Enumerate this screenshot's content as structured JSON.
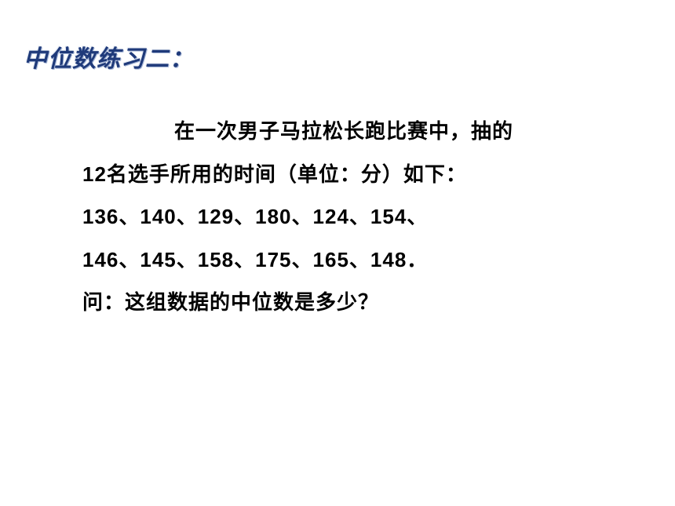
{
  "title": "中位数练习二：",
  "line1": "在一次男子马拉松长跑比赛中，抽的",
  "line2": "12名选手所用的时间（单位：分）如下：",
  "line3": "136、140、129、180、124、154、",
  "line4": "146、145、158、175、165、148．",
  "line5": "问：这组数据的中位数是多少？",
  "title_color": "#1f3a7a",
  "body_color": "#000000",
  "background_color": "#ffffff",
  "title_fontsize": 30,
  "body_fontsize": 26
}
